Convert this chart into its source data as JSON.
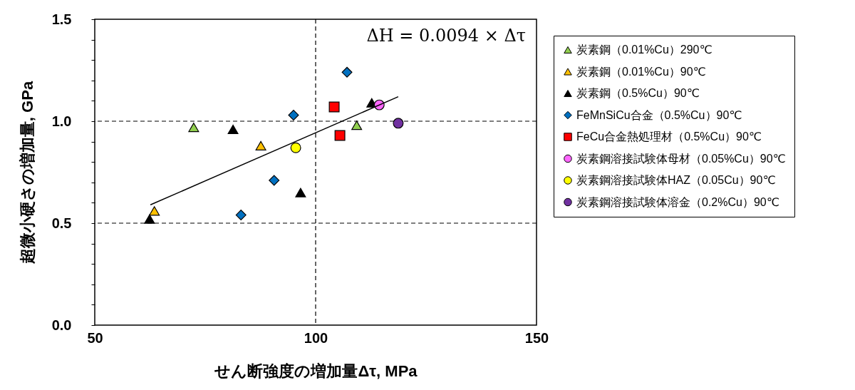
{
  "chart_data": {
    "type": "scatter",
    "xlabel": "せん断強度の増加量Δτ, MPa",
    "ylabel": "超微小硬さの増加量, GPa",
    "xlim": [
      50,
      150
    ],
    "xticks": [
      50,
      100,
      150
    ],
    "ylim": [
      0,
      1.5
    ],
    "yticks": [
      {
        "value": 0,
        "label": "0.0"
      },
      {
        "value": 0.1,
        "label": null
      },
      {
        "value": 0.2,
        "label": null
      },
      {
        "value": 0.3,
        "label": null
      },
      {
        "value": 0.4,
        "label": null
      },
      {
        "value": 0.5,
        "label": "0.5"
      },
      {
        "value": 0.6,
        "label": null
      },
      {
        "value": 0.7,
        "label": null
      },
      {
        "value": 0.8,
        "label": null
      },
      {
        "value": 0.9,
        "label": null
      },
      {
        "value": 1.0,
        "label": "1.0"
      },
      {
        "value": 1.1,
        "label": null
      },
      {
        "value": 1.2,
        "label": null
      },
      {
        "value": 1.3,
        "label": null
      },
      {
        "value": 1.4,
        "label": null
      },
      {
        "value": 1.5,
        "label": "1.5"
      }
    ],
    "grid": true,
    "legend": "right",
    "annotations": [
      "ΔH = 0.0094 × Δτ"
    ],
    "series": [
      {
        "name": "炭素鋼（0.01%Cu）290℃",
        "color": "#92d050",
        "marker": "triangle",
        "x": [
          72.4,
          109.3
        ],
        "values": [
          0.97,
          0.98
        ]
      },
      {
        "name": "炭素鋼（0.01%Cu）90℃",
        "color": "#ffc000",
        "marker": "triangle",
        "x": [
          87.6,
          63.5
        ],
        "values": [
          0.88,
          0.56
        ]
      },
      {
        "name": "炭素鋼（0.5%Cu）90℃",
        "color": "#000000",
        "marker": "triangle",
        "x": [
          81.3,
          96.6,
          62.4,
          112.7
        ],
        "values": [
          0.96,
          0.65,
          0.52,
          1.09
        ]
      },
      {
        "name": "FeMnSiCu合金（0.5%Cu）90℃",
        "color": "#0070c0",
        "marker": "diamond",
        "x": [
          95.0,
          90.6,
          83.1,
          107.1
        ],
        "values": [
          1.03,
          0.71,
          0.54,
          1.24
        ]
      },
      {
        "name": "FeCu合金熱処理材（0.5%Cu）90℃",
        "color": "#ff0000",
        "marker": "square",
        "x": [
          104.2,
          105.5
        ],
        "values": [
          1.07,
          0.93
        ]
      },
      {
        "name": "炭素鋼溶接試験体母材（0.05%Cu）90℃",
        "color": "#ff66ff",
        "marker": "circle",
        "x": [
          114.4
        ],
        "values": [
          1.08
        ]
      },
      {
        "name": "炭素鋼溶接試験体HAZ（0.05Cu）90℃",
        "color": "#ffff00",
        "marker": "circle",
        "x": [
          95.5
        ],
        "values": [
          0.87
        ]
      },
      {
        "name": "炭素鋼溶接試験体溶金（0.2%Cu）90℃",
        "color": "#7030a0",
        "marker": "circle",
        "x": [
          118.7
        ],
        "values": [
          0.99
        ]
      },
      {
        "type": "line",
        "color": "#000000",
        "x": [
          62.6,
          118.7
        ],
        "values": [
          0.59,
          1.12
        ]
      }
    ]
  }
}
